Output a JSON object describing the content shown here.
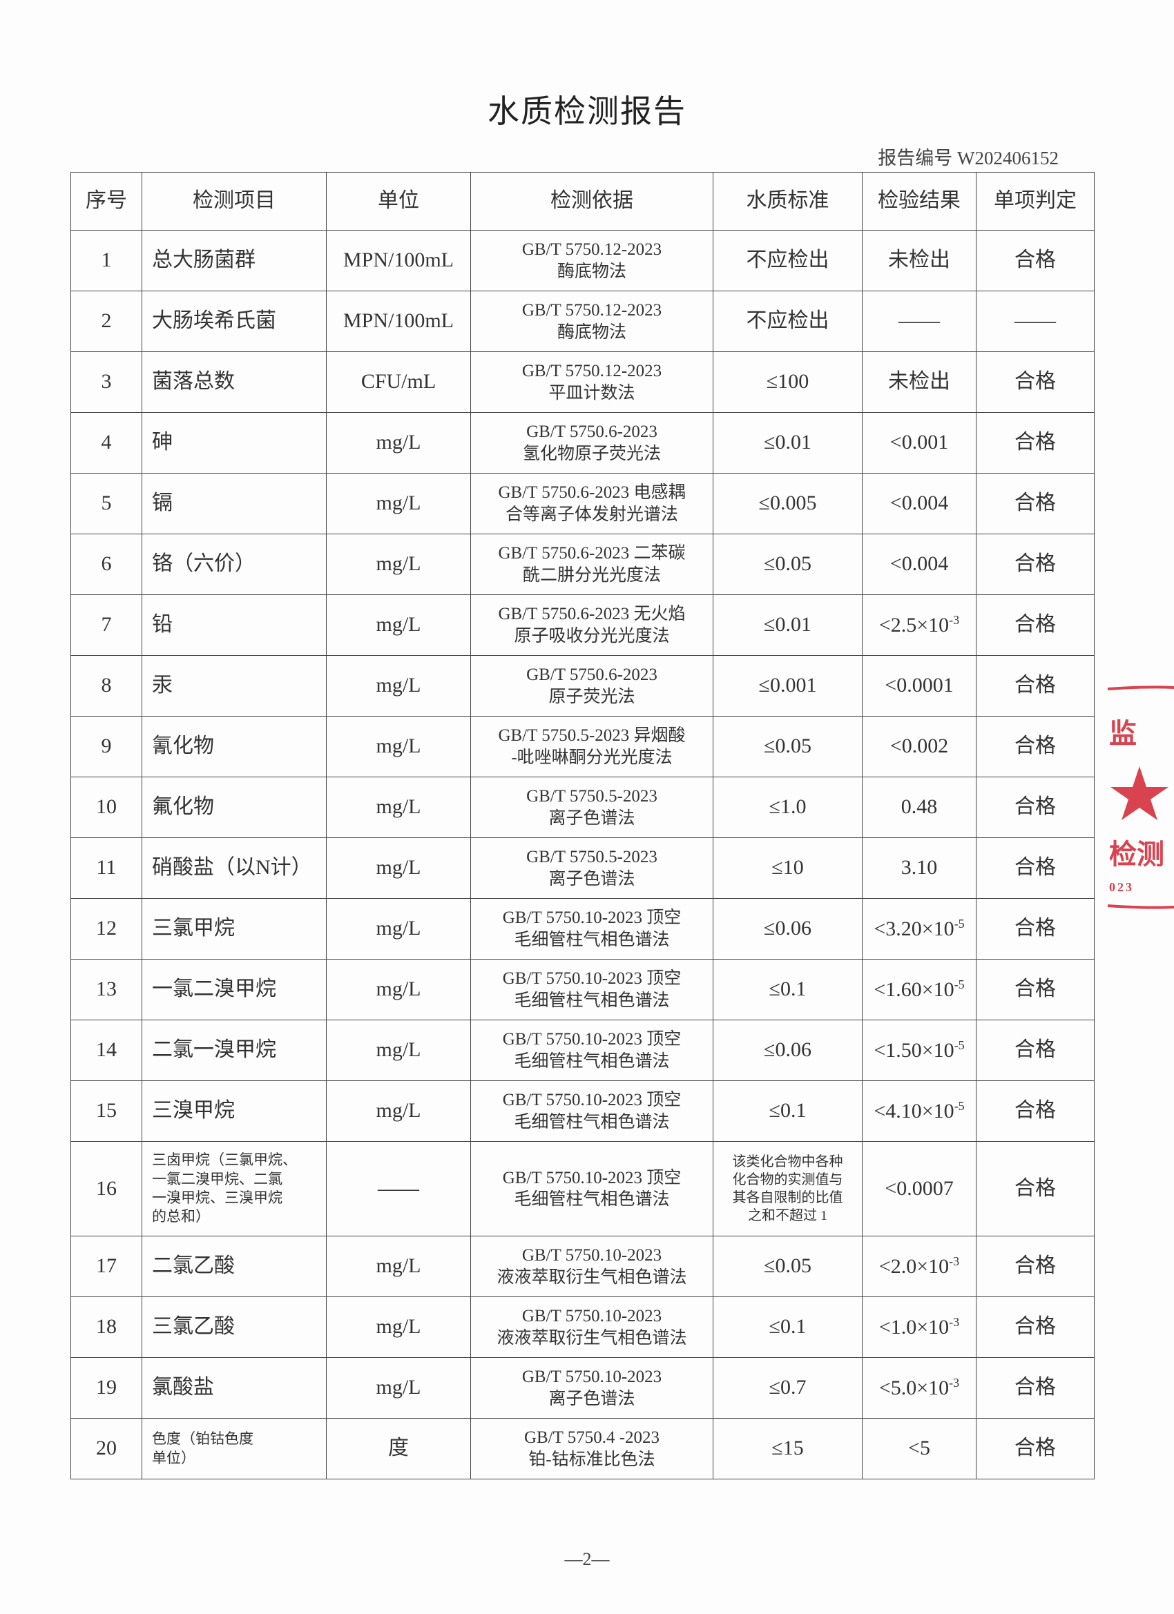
{
  "header": {
    "title": "水质检测报告",
    "report_number": "报告编号 W202406152"
  },
  "table": {
    "columns": [
      "序号",
      "检测项目",
      "单位",
      "检测依据",
      "水质标准",
      "检验结果",
      "单项判定"
    ],
    "rows": [
      [
        "1",
        "总大肠菌群",
        "MPN/100mL",
        [
          "GB/T 5750.12-2023",
          "酶底物法"
        ],
        "不应检出",
        "未检出",
        "合格"
      ],
      [
        "2",
        "大肠埃希氏菌",
        "MPN/100mL",
        [
          "GB/T 5750.12-2023",
          "酶底物法"
        ],
        "不应检出",
        "——",
        "——"
      ],
      [
        "3",
        "菌落总数",
        "CFU/mL",
        [
          "GB/T 5750.12-2023",
          "平皿计数法"
        ],
        "≤100",
        "未检出",
        "合格"
      ],
      [
        "4",
        "砷",
        "mg/L",
        [
          "GB/T 5750.6-2023",
          "氢化物原子荧光法"
        ],
        "≤0.01",
        "<0.001",
        "合格"
      ],
      [
        "5",
        "镉",
        "mg/L",
        [
          "GB/T 5750.6-2023 电感耦",
          "合等离子体发射光谱法"
        ],
        "≤0.005",
        "<0.004",
        "合格"
      ],
      [
        "6",
        "铬（六价）",
        "mg/L",
        [
          "GB/T 5750.6-2023 二苯碳",
          "酰二肼分光光度法"
        ],
        "≤0.05",
        "<0.004",
        "合格"
      ],
      [
        "7",
        "铅",
        "mg/L",
        [
          "GB/T 5750.6-2023 无火焰",
          "原子吸收分光光度法"
        ],
        "≤0.01",
        {
          "base": "<2.5×10",
          "exp": "-3"
        },
        "合格"
      ],
      [
        "8",
        "汞",
        "mg/L",
        [
          "GB/T 5750.6-2023",
          "原子荧光法"
        ],
        "≤0.001",
        "<0.0001",
        "合格"
      ],
      [
        "9",
        "氰化物",
        "mg/L",
        [
          "GB/T 5750.5-2023 异烟酸",
          "-吡唑啉酮分光光度法"
        ],
        "≤0.05",
        "<0.002",
        "合格"
      ],
      [
        "10",
        "氟化物",
        "mg/L",
        [
          "GB/T 5750.5-2023",
          "离子色谱法"
        ],
        "≤1.0",
        "0.48",
        "合格"
      ],
      [
        "11",
        "硝酸盐（以N计）",
        "mg/L",
        [
          "GB/T 5750.5-2023",
          "离子色谱法"
        ],
        "≤10",
        "3.10",
        "合格"
      ],
      [
        "12",
        "三氯甲烷",
        "mg/L",
        [
          "GB/T 5750.10-2023 顶空",
          "毛细管柱气相色谱法"
        ],
        "≤0.06",
        {
          "base": "<3.20×10",
          "exp": "-5"
        },
        "合格"
      ],
      [
        "13",
        "一氯二溴甲烷",
        "mg/L",
        [
          "GB/T 5750.10-2023 顶空",
          "毛细管柱气相色谱法"
        ],
        "≤0.1",
        {
          "base": "<1.60×10",
          "exp": "-5"
        },
        "合格"
      ],
      [
        "14",
        "二氯一溴甲烷",
        "mg/L",
        [
          "GB/T 5750.10-2023 顶空",
          "毛细管柱气相色谱法"
        ],
        "≤0.06",
        {
          "base": "<1.50×10",
          "exp": "-5"
        },
        "合格"
      ],
      [
        "15",
        "三溴甲烷",
        "mg/L",
        [
          "GB/T 5750.10-2023 顶空",
          "毛细管柱气相色谱法"
        ],
        "≤0.1",
        {
          "base": "<4.10×10",
          "exp": "-5"
        },
        "合格"
      ],
      [
        "16",
        [
          "三卤甲烷（三氯甲烷、",
          "一氯二溴甲烷、二氯",
          "一溴甲烷、三溴甲烷",
          "的总和）"
        ],
        "——",
        [
          "GB/T 5750.10-2023 顶空",
          "毛细管柱气相色谱法"
        ],
        [
          "该类化合物中各种",
          "化合物的实测值与",
          "其各自限制的比值",
          "之和不超过 1"
        ],
        "<0.0007",
        "合格"
      ],
      [
        "17",
        "二氯乙酸",
        "mg/L",
        [
          "GB/T 5750.10-2023",
          "液液萃取衍生气相色谱法"
        ],
        "≤0.05",
        {
          "base": "<2.0×10",
          "exp": "-3"
        },
        "合格"
      ],
      [
        "18",
        "三氯乙酸",
        "mg/L",
        [
          "GB/T 5750.10-2023",
          "液液萃取衍生气相色谱法"
        ],
        "≤0.1",
        {
          "base": "<1.0×10",
          "exp": "-3"
        },
        "合格"
      ],
      [
        "19",
        "氯酸盐",
        "mg/L",
        [
          "GB/T 5750.10-2023",
          "离子色谱法"
        ],
        "≤0.7",
        {
          "base": "<5.0×10",
          "exp": "-3"
        },
        "合格"
      ],
      [
        "20",
        [
          "色度（铂钴色度",
          "单位）"
        ],
        "度",
        [
          "GB/T 5750.4 -2023",
          "铂-钴标准比色法"
        ],
        "≤15",
        "<5",
        "合格"
      ]
    ]
  },
  "stamp": [
    "监",
    "检测",
    "023"
  ],
  "footer": "—2—"
}
